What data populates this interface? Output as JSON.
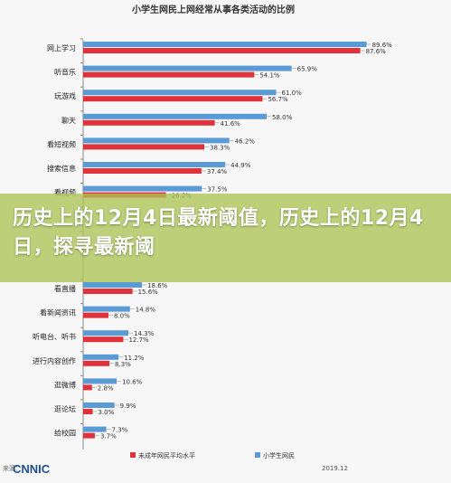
{
  "chart_data": {
    "type": "bar",
    "title": "小学生网民上网经常从事各类活动的比例",
    "orientation": "horizontal",
    "categories": [
      "网上学习",
      "听音乐",
      "玩游戏",
      "聊天",
      "看短视频",
      "搜索信息",
      "看视频",
      "",
      "",
      " ",
      "看直播",
      "看新闻资讯",
      "听电台、听书",
      "进行内容创作",
      "逛微博",
      "逛论坛",
      "给校园"
    ],
    "series": [
      {
        "name": "小学生网民",
        "color": "#5b9bd5",
        "values": [
          89.6,
          65.9,
          61.0,
          58.0,
          46.2,
          44.9,
          37.5,
          null,
          null,
          null,
          18.6,
          14.8,
          14.3,
          11.2,
          10.6,
          9.9,
          7.3
        ]
      },
      {
        "name": "未成年网民平均水平",
        "color": "#e0323a",
        "values": [
          87.6,
          54.1,
          56.7,
          41.6,
          38.3,
          37.4,
          26.2,
          null,
          null,
          null,
          15.6,
          8.0,
          12.7,
          8.3,
          2.8,
          3.0,
          3.7
        ]
      }
    ],
    "value_labels_blue": [
      "89.6%",
      "65.9%",
      "61.0%",
      "58.0%",
      "46.2%",
      "44.9%",
      "37.5%",
      "",
      "",
      "",
      "18.6%",
      "14.8%",
      "14.3%",
      "11.2%",
      "10.6%",
      "9.9%",
      "7.3%"
    ],
    "value_labels_red": [
      "87.6%",
      "54.1%",
      "56.7%",
      "41.6%",
      "38.3%",
      "37.4%",
      "26.2%",
      "",
      "",
      "",
      "15.6%",
      "8.0%",
      "12.7%",
      "8.3%",
      "2.8%",
      "3.0%",
      "3.7%"
    ],
    "xlim": [
      0,
      100
    ],
    "legend_position": "bottom"
  },
  "banner": {
    "text": "历史上的12月4日最新阈值，历史上的12月4日，探寻最新阈"
  },
  "source": {
    "prefix": "来源：",
    "logo": "CNNIC",
    "date": "2019.12"
  },
  "legend": {
    "red_label": "未成年网民平均水平",
    "blue_label": "小学生网民"
  }
}
